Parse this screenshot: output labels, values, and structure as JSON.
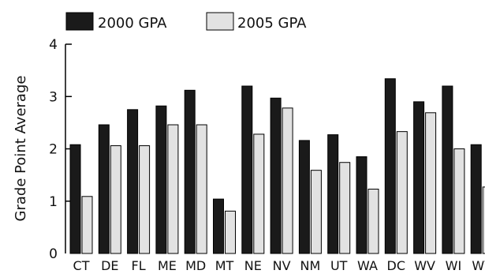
{
  "chart_data": {
    "type": "bar",
    "title": "",
    "xlabel": "",
    "ylabel": "Grade Point Average",
    "ylim": [
      0,
      4
    ],
    "yticks": [
      "0",
      "1",
      "2",
      "3",
      "4"
    ],
    "categories": [
      "CT",
      "DE",
      "FL",
      "ME",
      "MD",
      "MT",
      "NE",
      "NV",
      "NM",
      "UT",
      "WA",
      "DC",
      "WV",
      "WI",
      "WY"
    ],
    "series": [
      {
        "name": "2000 GPA",
        "color": "#1a1a1a",
        "values": [
          2.08,
          2.46,
          2.75,
          2.82,
          3.12,
          1.04,
          3.2,
          2.97,
          2.16,
          2.27,
          1.85,
          3.34,
          2.9,
          3.2,
          2.08
        ]
      },
      {
        "name": "2005 GPA",
        "color": "#e2e2e2",
        "values": [
          1.09,
          2.06,
          2.06,
          2.46,
          2.46,
          0.81,
          2.28,
          2.78,
          1.59,
          1.74,
          1.23,
          2.33,
          2.69,
          2.0,
          1.27
        ]
      }
    ],
    "grid": false,
    "legend_position": "top-left"
  }
}
